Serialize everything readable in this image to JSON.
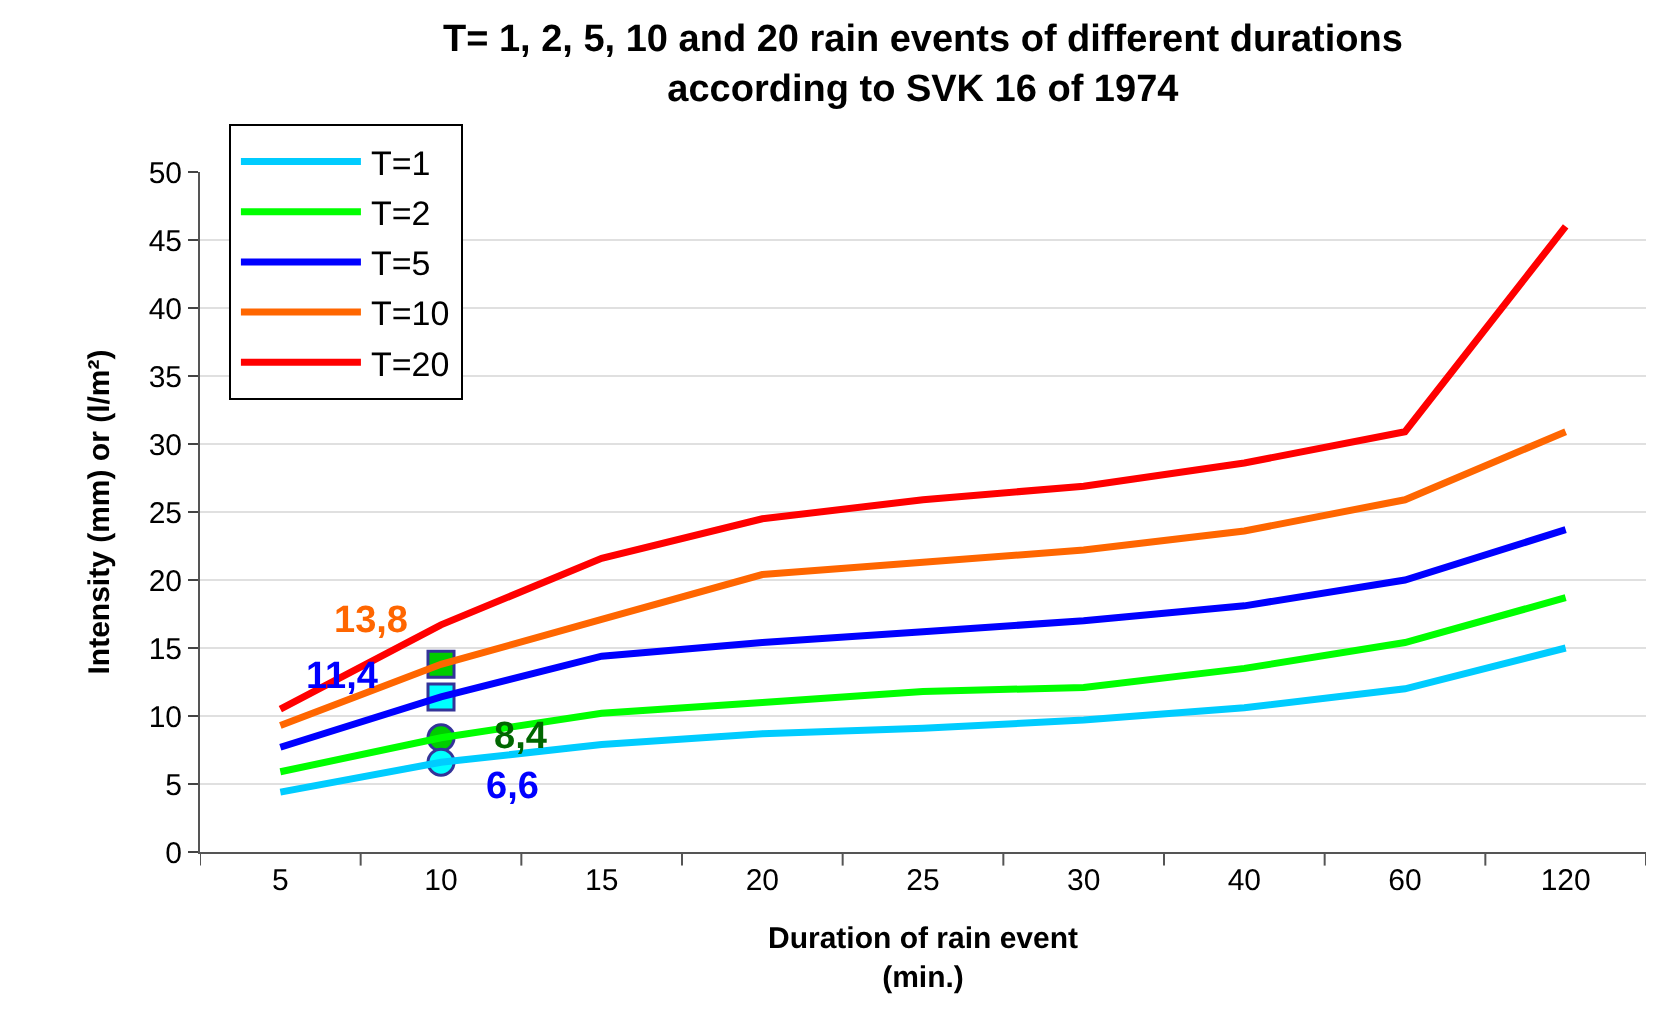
{
  "chart_data": {
    "type": "line",
    "title": "T= 1, 2, 5, 10 and 20 rain events of different durations\naccording to SVK 16 of 1974",
    "xlabel": "Duration of rain event\n(min.)",
    "ylabel": "Intensity (mm) or (l/m²)",
    "categories": [
      "5",
      "10",
      "15",
      "20",
      "25",
      "30",
      "40",
      "60",
      "120"
    ],
    "series": [
      {
        "name": "T=1",
        "color": "#00ccff",
        "values": [
          4.4,
          6.6,
          7.9,
          8.7,
          9.1,
          9.7,
          10.6,
          12.0,
          15.0
        ]
      },
      {
        "name": "T=2",
        "color": "#00ff00",
        "values": [
          5.9,
          8.4,
          10.2,
          11.0,
          11.8,
          12.1,
          13.5,
          15.4,
          18.7
        ]
      },
      {
        "name": "T=5",
        "color": "#0000ff",
        "values": [
          7.7,
          11.4,
          14.4,
          15.4,
          16.2,
          17.0,
          18.1,
          20.0,
          23.7
        ]
      },
      {
        "name": "T=10",
        "color": "#ff6600",
        "values": [
          9.3,
          13.8,
          17.1,
          20.4,
          21.3,
          22.2,
          23.6,
          25.9,
          30.9
        ]
      },
      {
        "name": "T=20",
        "color": "#ff0000",
        "values": [
          10.5,
          16.7,
          21.6,
          24.5,
          25.9,
          26.9,
          28.6,
          30.9,
          46.0
        ]
      },
      {
        "type": "scatter",
        "marker": "square",
        "color": "#00cc00",
        "x": [
          "10"
        ],
        "values": [
          13.8
        ]
      },
      {
        "type": "scatter",
        "marker": "square",
        "color": "#00ffff",
        "x": [
          "10"
        ],
        "values": [
          11.4
        ]
      },
      {
        "type": "scatter",
        "marker": "circle",
        "color": "#00cc00",
        "x": [
          "10"
        ],
        "values": [
          8.4
        ]
      },
      {
        "type": "scatter",
        "marker": "circle",
        "color": "#00ffff",
        "x": [
          "10"
        ],
        "values": [
          6.6
        ]
      }
    ],
    "annotations": [
      {
        "text": "13,8",
        "x": "10",
        "y": 13.8
      },
      {
        "text": "11,4",
        "x": "10",
        "y": 11.4
      },
      {
        "text": "8,4",
        "x": "10",
        "y": 8.4
      },
      {
        "text": "6,6",
        "x": "10",
        "y": 6.6
      }
    ],
    "ylim": [
      0,
      50
    ],
    "yticks": [
      0,
      5,
      10,
      15,
      20,
      25,
      30,
      35,
      40,
      45,
      50
    ],
    "grid": "y",
    "legend": "top left",
    "marker": "none",
    "line_style": "solid"
  }
}
